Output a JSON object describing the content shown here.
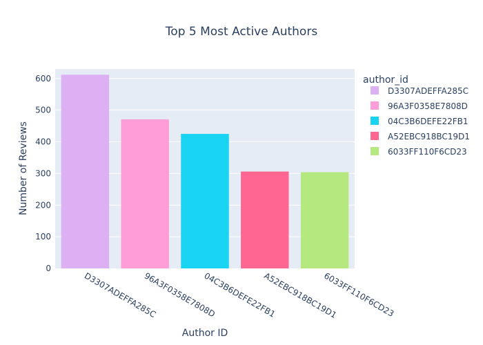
{
  "chart_data": {
    "type": "bar",
    "title": "Top 5 Most Active Authors",
    "xlabel": "Author ID",
    "ylabel": "Number of Reviews",
    "ylim": [
      0,
      630
    ],
    "yticks": [
      0,
      100,
      200,
      300,
      400,
      500,
      600
    ],
    "grid": true,
    "legend": {
      "title": "author_id",
      "placement": "right"
    },
    "categories": [
      "D3307ADEFFA285C",
      "96A3F0358E7808D",
      "04C3B6DEFE22FB1",
      "A52EBC918BC19D1",
      "6033FF110F6CD23"
    ],
    "values": [
      612,
      471,
      425,
      306,
      304
    ],
    "colors": [
      "#DDB0F3",
      "#FF9DD9",
      "#19D3F3",
      "#FF6692",
      "#B6E880"
    ]
  },
  "style": {
    "plot_background": "#E5ECF6",
    "gridline_color": "#FFFFFF",
    "text_color": "#2A3F5F"
  }
}
